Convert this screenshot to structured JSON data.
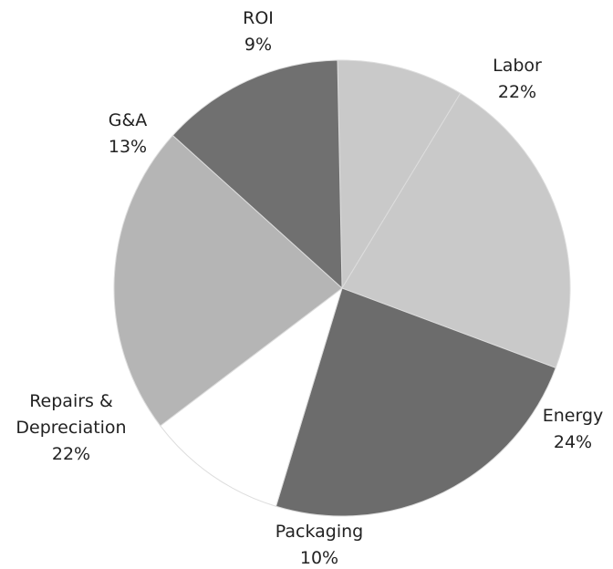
{
  "chart_data": {
    "type": "pie",
    "categories": [
      "ROI",
      "Labor",
      "Energy",
      "Packaging",
      "Repairs & Depreciation",
      "G&A"
    ],
    "values": [
      9,
      22,
      24,
      10,
      22,
      13
    ],
    "value_labels": [
      "9%",
      "22%",
      "24%",
      "10%",
      "22%",
      "13%"
    ],
    "colors": [
      "#c9c9c9",
      "#c9c9c9",
      "#6c6c6c",
      "#ffffff",
      "#b5b5b5",
      "#707070"
    ]
  }
}
